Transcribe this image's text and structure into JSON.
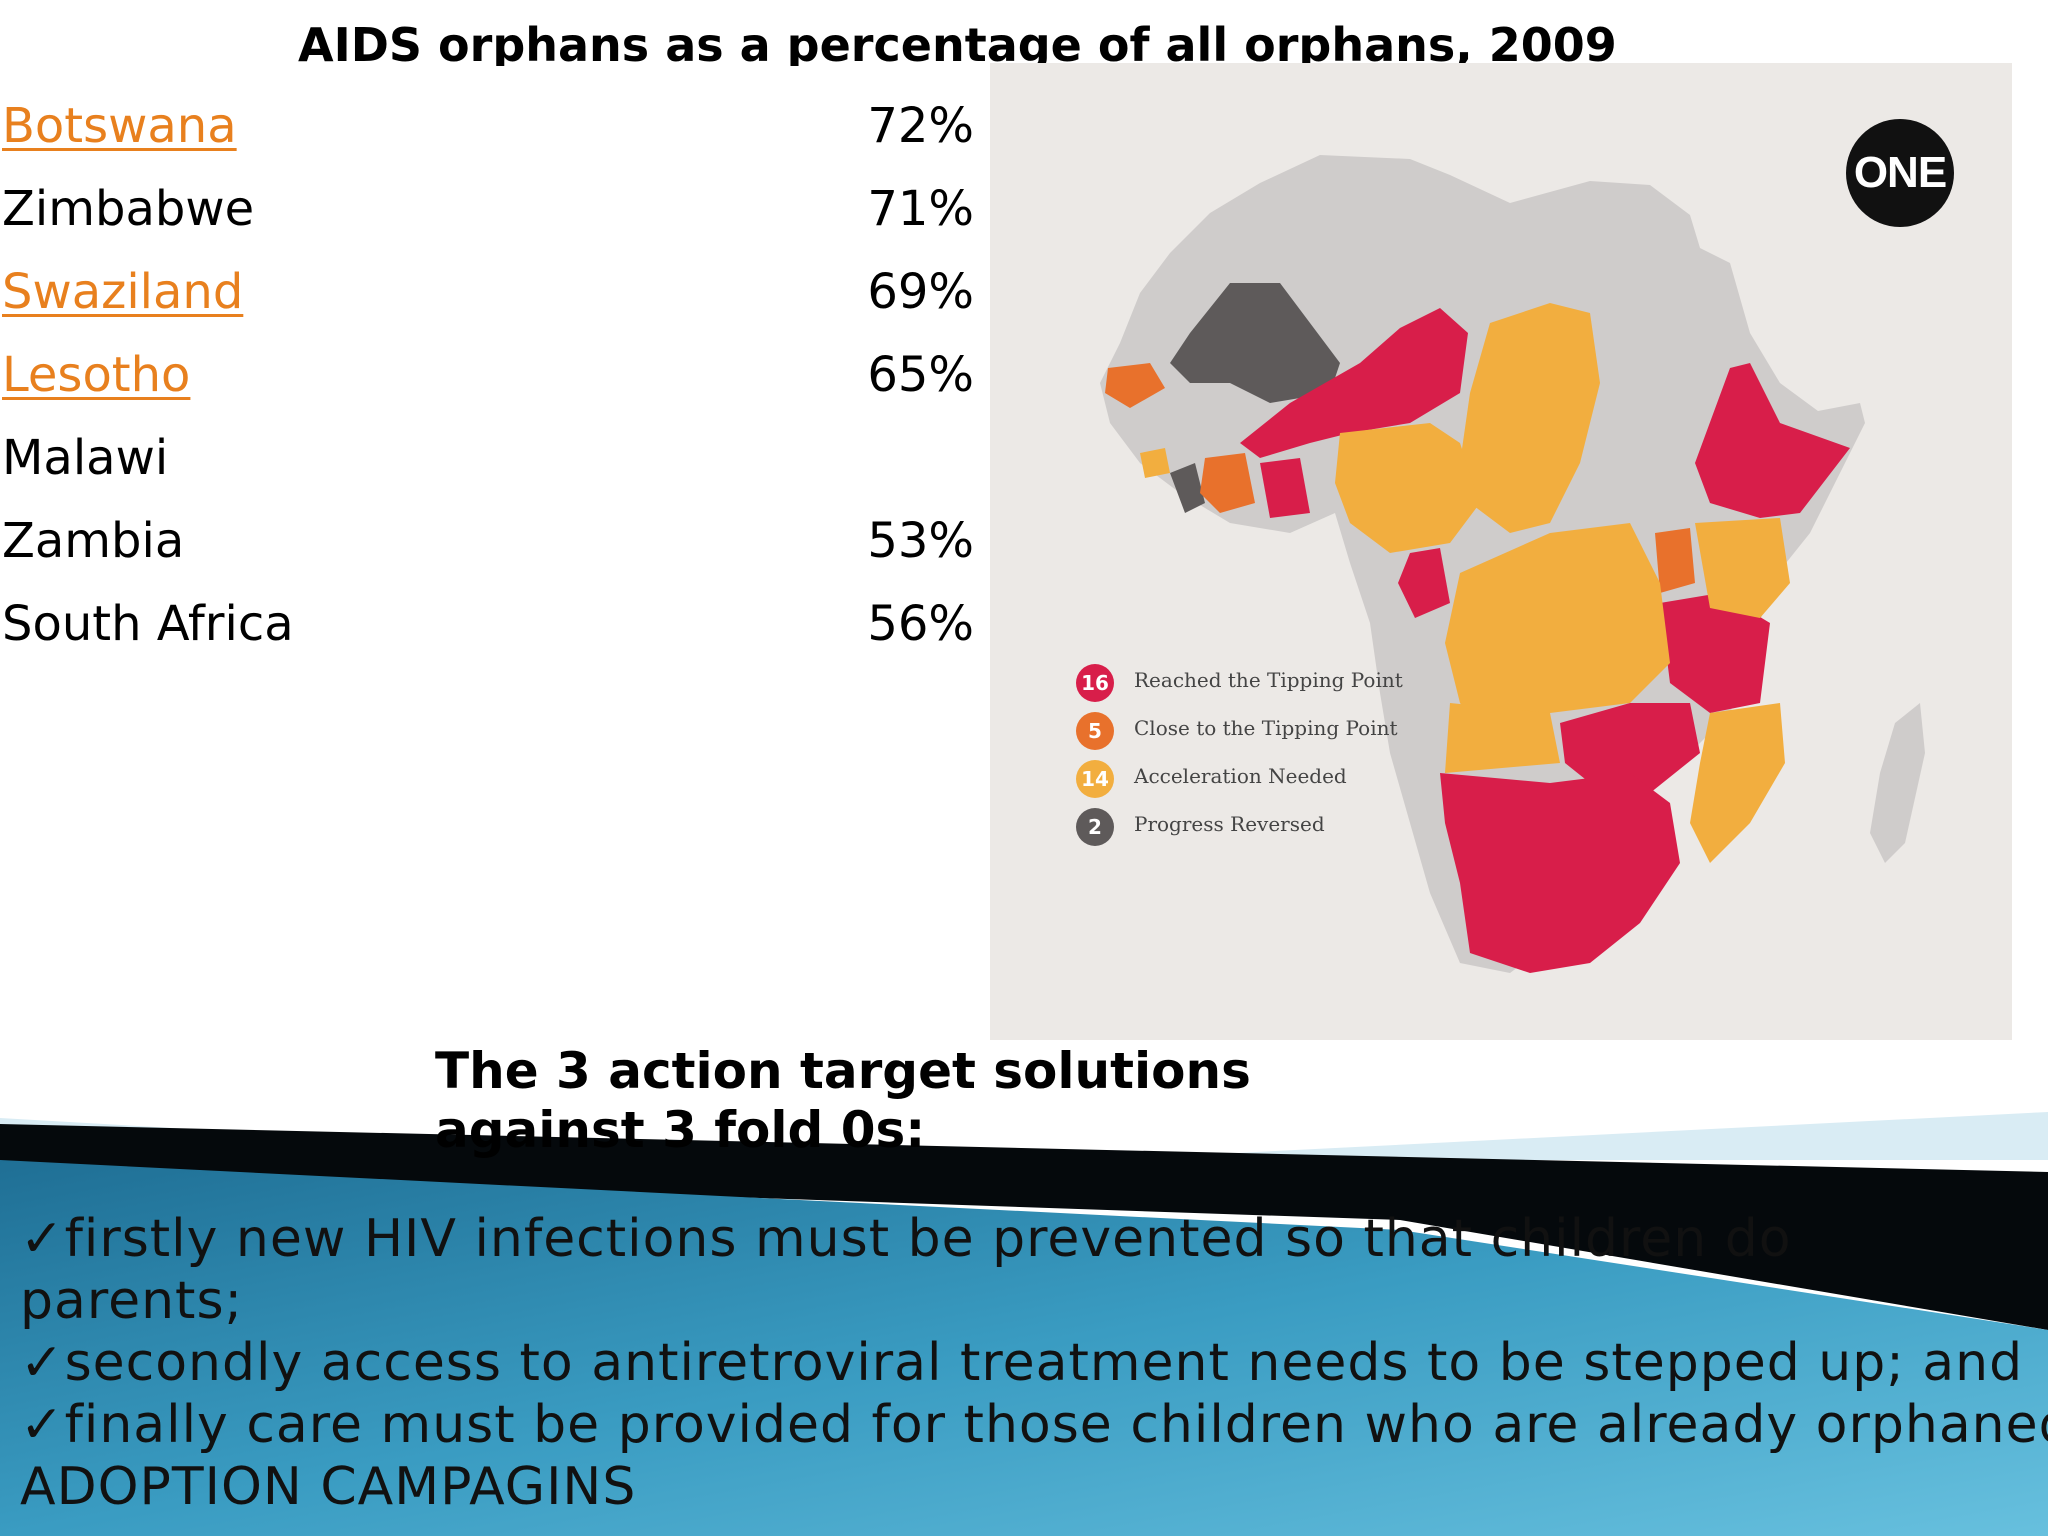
{
  "title": "AIDS orphans as a percentage of all orphans, 2009",
  "countries": [
    {
      "name": "Botswana",
      "percent": "72%",
      "link": true
    },
    {
      "name": "Zimbabwe",
      "percent": "71%",
      "link": false
    },
    {
      "name": "Swaziland",
      "percent": "69%",
      "link": true
    },
    {
      "name": "Lesotho",
      "percent": "65%",
      "link": true
    },
    {
      "name": "Malawi",
      "percent": "",
      "link": false
    },
    {
      "name": "Zambia",
      "percent": "53%",
      "link": false
    },
    {
      "name": "South Africa",
      "percent": "56%",
      "link": false
    }
  ],
  "map": {
    "logo": "ONE",
    "legend": [
      {
        "count": "16",
        "label": "Reached the Tipping Point",
        "color": "#d81e4a"
      },
      {
        "count": "5",
        "label": "Close to the Tipping Point",
        "color": "#e8712c"
      },
      {
        "count": "14",
        "label": "Acceleration Needed",
        "color": "#f2ae3f"
      },
      {
        "count": "2",
        "label": "Progress Reversed",
        "color": "#5e5a5a"
      }
    ],
    "colors": {
      "background": "#ece9e6",
      "land": "#cfcccb",
      "red": "#d81e4a",
      "orange": "#e8712c",
      "yellow": "#f2ae3f",
      "dark": "#5e5a5a"
    }
  },
  "subtitle": "The 3 action target solutions against  3 fold 0s:",
  "bullets": [
    "✓firstly new HIV infections must be prevented so that children do",
    "parents;",
    "✓secondly access to antiretroviral treatment needs to be stepped up; and",
    "✓finally care must be provided for those children who are already orphaned-",
    "ADOPTION CAMPAGINS"
  ],
  "theme": {
    "band_dark": "#05090c",
    "band_blue": "#2f8fb4",
    "band_light": "#5bb5d6"
  }
}
